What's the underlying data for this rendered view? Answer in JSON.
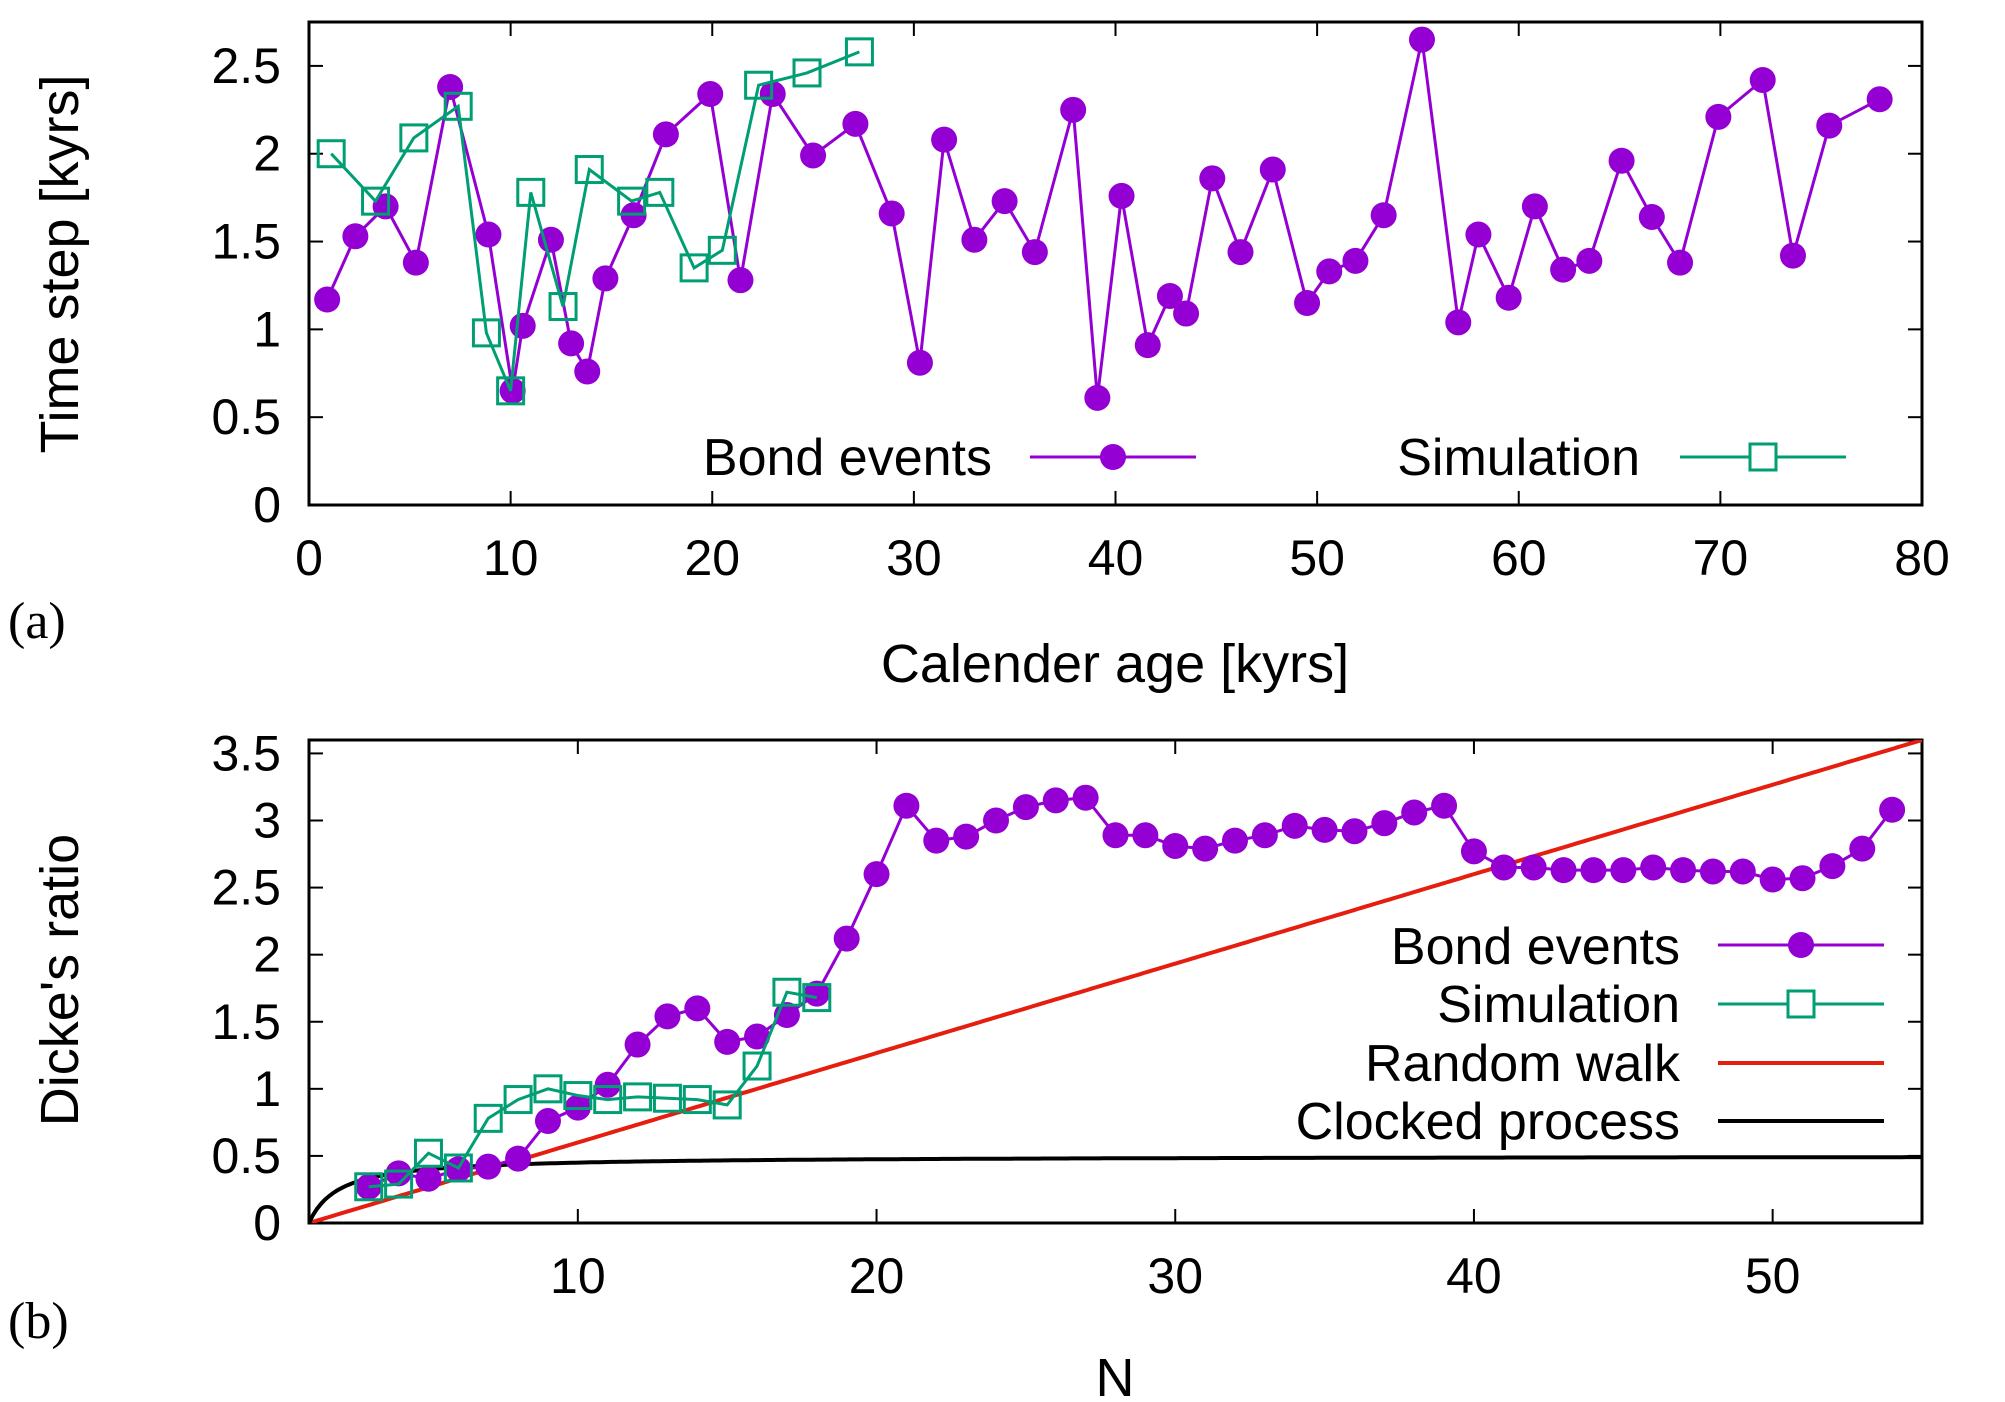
{
  "colors": {
    "bond": "#9400d3",
    "simulation": "#009e73",
    "random_walk": "#e51e10",
    "clocked": "#000000"
  },
  "chart_data": [
    {
      "panel_label": "(a)",
      "type": "line",
      "xlabel": "Calender age [kyrs]",
      "ylabel": "Time step [kyrs]",
      "xlim": [
        0,
        80
      ],
      "ylim": [
        0,
        2.75
      ],
      "xticks": [
        "0",
        "10",
        "20",
        "30",
        "40",
        "50",
        "60",
        "70",
        "80"
      ],
      "yticks": [
        "0",
        "0.5",
        "1",
        "1.5",
        "2",
        "2.5"
      ],
      "legend_position": "bottom",
      "series": [
        {
          "name": "Bond events",
          "marker": "filled-circle",
          "color_key": "bond",
          "points": [
            [
              0.9,
              1.17
            ],
            [
              2.3,
              1.53
            ],
            [
              3.8,
              1.7
            ],
            [
              5.3,
              1.38
            ],
            [
              7.0,
              2.38
            ],
            [
              8.9,
              1.54
            ],
            [
              10.1,
              0.65
            ],
            [
              10.6,
              1.02
            ],
            [
              12.0,
              1.51
            ],
            [
              13.0,
              0.92
            ],
            [
              13.8,
              0.76
            ],
            [
              14.7,
              1.29
            ],
            [
              16.1,
              1.65
            ],
            [
              17.7,
              2.11
            ],
            [
              19.9,
              2.34
            ],
            [
              21.4,
              1.28
            ],
            [
              23.0,
              2.34
            ],
            [
              25.0,
              1.99
            ],
            [
              27.1,
              2.17
            ],
            [
              28.9,
              1.66
            ],
            [
              30.3,
              0.81
            ],
            [
              31.5,
              2.08
            ],
            [
              33.0,
              1.51
            ],
            [
              34.5,
              1.73
            ],
            [
              36.0,
              1.44
            ],
            [
              37.9,
              2.25
            ],
            [
              39.1,
              0.61
            ],
            [
              40.3,
              1.76
            ],
            [
              41.6,
              0.91
            ],
            [
              42.7,
              1.19
            ],
            [
              43.5,
              1.09
            ],
            [
              44.8,
              1.86
            ],
            [
              46.2,
              1.44
            ],
            [
              47.8,
              1.91
            ],
            [
              49.5,
              1.15
            ],
            [
              50.6,
              1.33
            ],
            [
              51.9,
              1.39
            ],
            [
              53.3,
              1.65
            ],
            [
              55.2,
              2.65
            ],
            [
              57.0,
              1.04
            ],
            [
              58.0,
              1.54
            ],
            [
              59.5,
              1.18
            ],
            [
              60.8,
              1.7
            ],
            [
              62.2,
              1.34
            ],
            [
              63.5,
              1.39
            ],
            [
              65.1,
              1.96
            ],
            [
              66.6,
              1.64
            ],
            [
              68.0,
              1.38
            ],
            [
              69.9,
              2.21
            ],
            [
              72.1,
              2.42
            ],
            [
              73.6,
              1.42
            ],
            [
              75.4,
              2.16
            ],
            [
              77.9,
              2.31
            ]
          ]
        },
        {
          "name": "Simulation",
          "marker": "open-square",
          "color_key": "simulation",
          "points": [
            [
              1.1,
              2.0
            ],
            [
              3.3,
              1.73
            ],
            [
              5.2,
              2.09
            ],
            [
              7.4,
              2.27
            ],
            [
              8.8,
              0.98
            ],
            [
              10.0,
              0.65
            ],
            [
              11.0,
              1.78
            ],
            [
              12.6,
              1.13
            ],
            [
              13.9,
              1.91
            ],
            [
              16.0,
              1.73
            ],
            [
              17.4,
              1.78
            ],
            [
              19.1,
              1.35
            ],
            [
              20.5,
              1.45
            ],
            [
              22.3,
              2.39
            ],
            [
              24.7,
              2.46
            ],
            [
              27.3,
              2.58
            ]
          ]
        }
      ]
    },
    {
      "panel_label": "(b)",
      "type": "line",
      "xlabel": "N",
      "ylabel": "Dicke's ratio",
      "xlim": [
        1,
        55
      ],
      "ylim": [
        0,
        3.6
      ],
      "xticks": [
        "10",
        "20",
        "30",
        "40",
        "50"
      ],
      "yticks": [
        "0",
        "0.5",
        "1",
        "1.5",
        "2",
        "2.5",
        "3",
        "3.5"
      ],
      "legend_position": "right",
      "series": [
        {
          "name": "Bond events",
          "marker": "filled-circle",
          "color_key": "bond",
          "points": [
            [
              3,
              0.27
            ],
            [
              4,
              0.37
            ],
            [
              5,
              0.33
            ],
            [
              6,
              0.4
            ],
            [
              7,
              0.42
            ],
            [
              8,
              0.48
            ],
            [
              9,
              0.76
            ],
            [
              10,
              0.86
            ],
            [
              11,
              1.03
            ],
            [
              12,
              1.33
            ],
            [
              13,
              1.54
            ],
            [
              14,
              1.6
            ],
            [
              15,
              1.35
            ],
            [
              16,
              1.39
            ],
            [
              17,
              1.55
            ],
            [
              18,
              1.71
            ],
            [
              19,
              2.12
            ],
            [
              20,
              2.6
            ],
            [
              21,
              3.11
            ],
            [
              22,
              2.85
            ],
            [
              23,
              2.88
            ],
            [
              24,
              3.0
            ],
            [
              25,
              3.1
            ],
            [
              26,
              3.15
            ],
            [
              27,
              3.17
            ],
            [
              28,
              2.89
            ],
            [
              29,
              2.89
            ],
            [
              30,
              2.81
            ],
            [
              31,
              2.79
            ],
            [
              32,
              2.85
            ],
            [
              33,
              2.89
            ],
            [
              34,
              2.96
            ],
            [
              35,
              2.93
            ],
            [
              36,
              2.92
            ],
            [
              37,
              2.98
            ],
            [
              38,
              3.06
            ],
            [
              39,
              3.11
            ],
            [
              40,
              2.77
            ],
            [
              41,
              2.65
            ],
            [
              42,
              2.65
            ],
            [
              43,
              2.63
            ],
            [
              44,
              2.63
            ],
            [
              45,
              2.63
            ],
            [
              46,
              2.65
            ],
            [
              47,
              2.63
            ],
            [
              48,
              2.62
            ],
            [
              49,
              2.62
            ],
            [
              50,
              2.56
            ],
            [
              51,
              2.57
            ],
            [
              52,
              2.66
            ],
            [
              53,
              2.79
            ],
            [
              54,
              3.08
            ]
          ]
        },
        {
          "name": "Simulation",
          "marker": "open-square",
          "color_key": "simulation",
          "points": [
            [
              3,
              0.27
            ],
            [
              4,
              0.29
            ],
            [
              5,
              0.52
            ],
            [
              6,
              0.41
            ],
            [
              7,
              0.78
            ],
            [
              8,
              0.92
            ],
            [
              9,
              1.0
            ],
            [
              10,
              0.95
            ],
            [
              11,
              0.92
            ],
            [
              12,
              0.94
            ],
            [
              13,
              0.93
            ],
            [
              14,
              0.92
            ],
            [
              15,
              0.88
            ],
            [
              16,
              1.17
            ],
            [
              17,
              1.72
            ],
            [
              18,
              1.68
            ]
          ]
        },
        {
          "name": "Random walk",
          "marker": "none",
          "color_key": "random_walk",
          "function": "(N-1)/15",
          "domain": [
            1,
            55
          ]
        },
        {
          "name": "Clocked process",
          "marker": "none",
          "color_key": "clocked",
          "function": "0.5*(1-1/N)",
          "domain": [
            1,
            55
          ]
        }
      ]
    }
  ]
}
